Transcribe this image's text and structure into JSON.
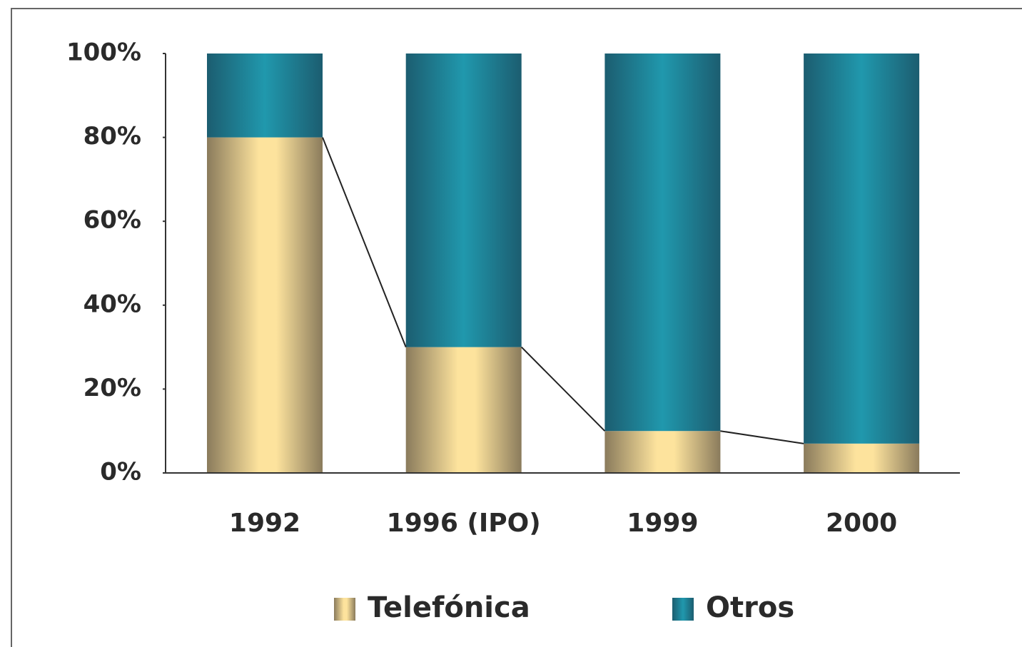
{
  "chart_data": {
    "type": "stacked_bar",
    "categories": [
      "1992",
      "1996 (IPO)",
      "1999",
      "2000"
    ],
    "series": [
      {
        "name": "Telefónica",
        "color": "#f5d88c",
        "values": [
          80,
          30,
          10,
          7
        ]
      },
      {
        "name": "Otros",
        "color": "#1f8ea3",
        "values": [
          20,
          70,
          90,
          93
        ]
      }
    ],
    "ylim": [
      0,
      100
    ],
    "yticks": [
      {
        "value": 0,
        "label": "0%"
      },
      {
        "value": 20,
        "label": "20%"
      },
      {
        "value": 40,
        "label": "40%"
      },
      {
        "value": 60,
        "label": "60%"
      },
      {
        "value": 80,
        "label": "80%"
      },
      {
        "value": 100,
        "label": "100%"
      }
    ]
  }
}
